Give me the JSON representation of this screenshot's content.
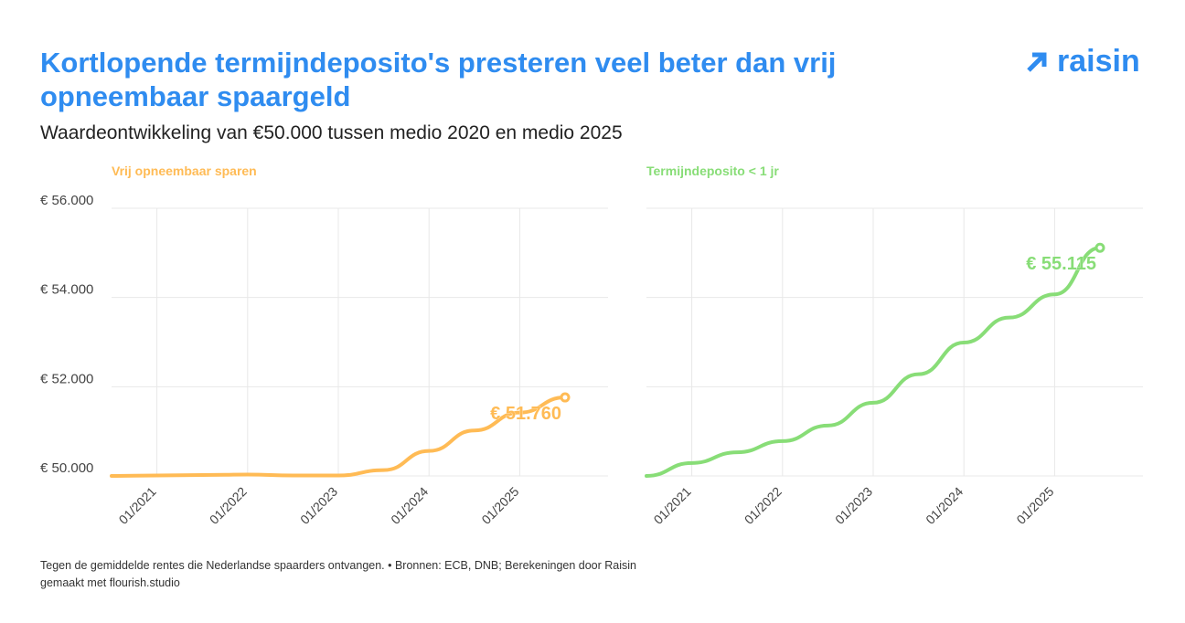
{
  "title": "Kortlopende termijndeposito's presteren veel beter dan vrij opneembaar spaargeld",
  "subtitle": "Waardeontwikkeling van €50.000 tussen medio 2020 en medio 2025",
  "logo": "raisin",
  "footer": {
    "note": "Tegen de gemiddelde rentes die Nederlandse spaarders ontvangen. • Bronnen: ECB, DNB; Berekeningen door Raisin",
    "credit": "gemaakt met flourish.studio"
  },
  "chart_data": [
    {
      "type": "line",
      "title": "Vrij opneembaar sparen",
      "color": "#FFBB55",
      "x": [
        "07/2020",
        "01/2021",
        "07/2021",
        "01/2022",
        "07/2022",
        "01/2023",
        "07/2023",
        "01/2024",
        "07/2024",
        "01/2025",
        "07/2025"
      ],
      "values": [
        50000,
        50010,
        50020,
        50030,
        50010,
        50010,
        50130,
        50560,
        51020,
        51420,
        51760
      ],
      "end_label": "€ 51.760",
      "x_ticks": [
        "01/2021",
        "01/2022",
        "01/2023",
        "01/2024",
        "01/2025"
      ],
      "y_ticks": [
        "€ 50.000",
        "€ 52.000",
        "€ 54.000",
        "€ 56.000"
      ],
      "ylim": [
        50000,
        56000
      ],
      "grid": true
    },
    {
      "type": "line",
      "title": "Termijndeposito < 1 jr",
      "color": "#88DD77",
      "x": [
        "07/2020",
        "01/2021",
        "07/2021",
        "01/2022",
        "07/2022",
        "01/2023",
        "07/2023",
        "01/2024",
        "07/2024",
        "01/2025",
        "07/2025"
      ],
      "values": [
        50000,
        50290,
        50530,
        50780,
        51130,
        51640,
        52280,
        52990,
        53550,
        54070,
        55115
      ],
      "end_label": "€ 55.115",
      "x_ticks": [
        "01/2021",
        "01/2022",
        "01/2023",
        "01/2024",
        "01/2025"
      ],
      "ylim": [
        50000,
        56000
      ],
      "grid": true
    }
  ]
}
